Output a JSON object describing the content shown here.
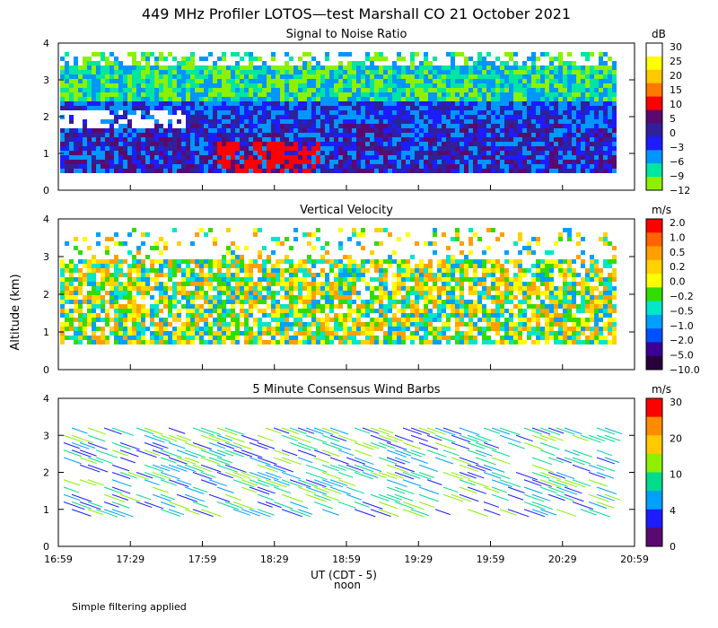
{
  "title": "449 MHz Profiler LOTOS—test Marshall CO 21 October 2021",
  "ylabel": "Altitude (km)",
  "xlabel": "UT  (CDT - 5)",
  "noon_label": "noon",
  "footer": "Simple filtering applied",
  "chart_data": [
    {
      "type": "heatmap",
      "title": "Signal to Noise Ratio",
      "unit": "dB",
      "x": [
        "16:59",
        "17:29",
        "17:59",
        "18:29",
        "18:59",
        "19:29",
        "19:59",
        "20:29",
        "20:59"
      ],
      "y_ticks": [
        0,
        1,
        2,
        3,
        4
      ],
      "ylim": [
        0,
        4
      ],
      "colorbar": {
        "labels": [
          "30",
          "25",
          "20",
          "15",
          "10",
          "5",
          "0",
          "−3",
          "−6",
          "−9",
          "−12"
        ],
        "colors": [
          "#ffffff",
          "#ffff00",
          "#ffc800",
          "#ff7800",
          "#ff0000",
          "#5a0a6e",
          "#30209a",
          "#1c1cff",
          "#0096ff",
          "#00e6a0",
          "#8cf000"
        ]
      }
    },
    {
      "type": "heatmap",
      "title": "Vertical Velocity",
      "unit": "m/s",
      "x": [
        "16:59",
        "17:29",
        "17:59",
        "18:29",
        "18:59",
        "19:29",
        "19:59",
        "20:29",
        "20:59"
      ],
      "y_ticks": [
        0,
        1,
        2,
        3,
        4
      ],
      "ylim": [
        0,
        4
      ],
      "colorbar": {
        "labels": [
          "2.0",
          "1.0",
          "0.5",
          "0.2",
          "0.0",
          "−0.2",
          "−0.5",
          "−1.0",
          "−2.0",
          "−5.0",
          "−10.0"
        ],
        "colors": [
          "#ff0000",
          "#ff6400",
          "#ffa000",
          "#ffd200",
          "#ffff00",
          "#32dc00",
          "#00e6c8",
          "#00a0ff",
          "#0050ff",
          "#3c0096",
          "#28003c"
        ]
      }
    },
    {
      "type": "scatter",
      "title": "5 Minute Consensus Wind Barbs",
      "unit": "m/s",
      "x": [
        "16:59",
        "17:29",
        "17:59",
        "18:29",
        "18:59",
        "19:29",
        "19:59",
        "20:29",
        "20:59"
      ],
      "y_ticks": [
        0,
        1,
        2,
        3,
        4
      ],
      "ylim": [
        0,
        4
      ],
      "colorbar": {
        "labels": [
          "30",
          "20",
          "10",
          "4",
          "0"
        ],
        "colors": [
          "#ff0000",
          "#ff8c00",
          "#ffc800",
          "#8cf000",
          "#00dc8c",
          "#00a0ff",
          "#1c1cff",
          "#5a0a6e"
        ]
      }
    }
  ]
}
